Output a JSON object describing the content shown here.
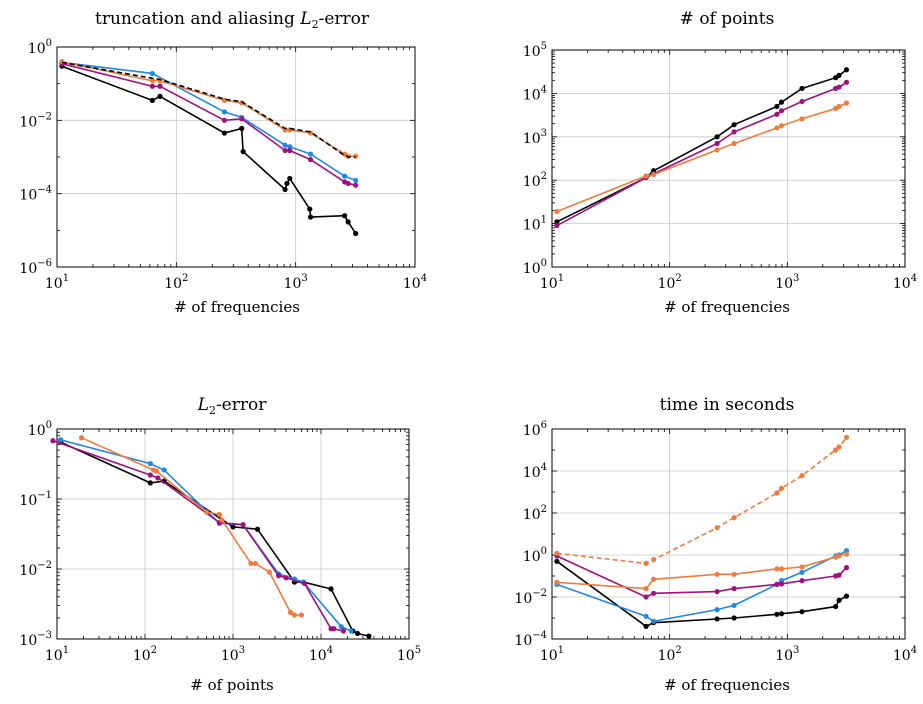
{
  "colors": {
    "black": "#000000",
    "blue": "#1e88e5",
    "purple": "#a0117f",
    "orange": "#ef7b3d"
  },
  "chart_data": [
    {
      "type": "line",
      "title": "truncation and aliasing L2-error",
      "xlabel": "# of frequencies",
      "ylabel": "",
      "xscale": "log",
      "yscale": "log",
      "xlim": [
        10,
        10000
      ],
      "ylim": [
        1e-06,
        1
      ],
      "grid": true,
      "series": [
        {
          "color": "#000000",
          "dashed": false,
          "x": [
            11,
            63,
            73,
            253,
            353,
            363,
            815,
            845,
            893,
            1313,
            1333,
            2573,
            2753,
            3183
          ],
          "y": [
            0.3,
            0.035,
            0.045,
            0.0045,
            0.006,
            0.0014,
            0.00013,
            0.00019,
            0.00026,
            3.8e-05,
            2.3e-05,
            2.5e-05,
            1.7e-05,
            8.2e-06
          ]
        },
        {
          "color": "#1e88e5",
          "dashed": false,
          "x": [
            11,
            63,
            253,
            353,
            815,
            893,
            1333,
            2573,
            3183
          ],
          "y": [
            0.38,
            0.19,
            0.017,
            0.012,
            0.0021,
            0.0019,
            0.0012,
            0.0003,
            0.00023
          ]
        },
        {
          "color": "#a0117f",
          "dashed": false,
          "x": [
            11,
            63,
            73,
            253,
            353,
            815,
            893,
            1333,
            2573,
            2753,
            3183
          ],
          "y": [
            0.35,
            0.085,
            0.085,
            0.01,
            0.011,
            0.0015,
            0.0015,
            0.00085,
            0.00021,
            0.00019,
            0.00017
          ]
        },
        {
          "color": "#ef7b3d",
          "dashed": false,
          "x": [
            11,
            63,
            73,
            253,
            353,
            815,
            893,
            1333,
            2573,
            2753,
            3183
          ],
          "y": [
            0.4,
            0.12,
            0.12,
            0.035,
            0.03,
            0.0055,
            0.0055,
            0.0045,
            0.0012,
            0.00105,
            0.00105
          ]
        },
        {
          "color": "#000000",
          "dashed": true,
          "markers": false,
          "x": [
            11,
            63,
            73,
            253,
            353,
            815,
            893,
            1333,
            2573,
            2753,
            3183
          ],
          "y": [
            0.38,
            0.14,
            0.13,
            0.038,
            0.032,
            0.006,
            0.006,
            0.0048,
            0.0011,
            0.001,
            0.001
          ]
        }
      ]
    },
    {
      "type": "line",
      "title": "# of points",
      "xlabel": "# of frequencies",
      "ylabel": "",
      "xscale": "log",
      "yscale": "log",
      "xlim": [
        10,
        10000
      ],
      "ylim": [
        1,
        100000
      ],
      "grid": true,
      "series": [
        {
          "color": "#000000",
          "dashed": false,
          "x": [
            11,
            63,
            73,
            253,
            353,
            815,
            893,
            1333,
            2573,
            2753,
            3183
          ],
          "y": [
            11,
            115,
            165,
            1000,
            1900,
            5000,
            6300,
            13000,
            23000,
            26000,
            35000
          ]
        },
        {
          "color": "#a0117f",
          "dashed": false,
          "x": [
            11,
            63,
            73,
            253,
            353,
            815,
            893,
            1333,
            2573,
            2753,
            3183
          ],
          "y": [
            9,
            115,
            140,
            700,
            1300,
            3300,
            4000,
            6500,
            13000,
            14000,
            18000
          ]
        },
        {
          "color": "#ef7b3d",
          "dashed": false,
          "x": [
            11,
            63,
            73,
            253,
            353,
            815,
            893,
            1333,
            2573,
            2753,
            3183
          ],
          "y": [
            19,
            125,
            135,
            500,
            700,
            1600,
            1800,
            2600,
            4500,
            5000,
            6000
          ]
        }
      ]
    },
    {
      "type": "line",
      "title": "L2-error",
      "xlabel": "# of points",
      "ylabel": "",
      "xscale": "log",
      "yscale": "log",
      "xlim": [
        10,
        100000
      ],
      "ylim": [
        0.001,
        1
      ],
      "grid": true,
      "series": [
        {
          "color": "#000000",
          "dashed": false,
          "x": [
            11,
            115,
            165,
            1000,
            1900,
            5000,
            6300,
            13000,
            23000,
            26000,
            35000
          ],
          "y": [
            0.65,
            0.17,
            0.18,
            0.04,
            0.037,
            0.0065,
            0.0065,
            0.0052,
            0.0013,
            0.0012,
            0.0011
          ]
        },
        {
          "color": "#1e88e5",
          "dashed": false,
          "x": [
            11,
            115,
            165,
            700,
            1300,
            3300,
            5000,
            6300,
            17000,
            22000
          ],
          "y": [
            0.7,
            0.32,
            0.26,
            0.045,
            0.043,
            0.0085,
            0.0072,
            0.0065,
            0.0015,
            0.0013
          ]
        },
        {
          "color": "#a0117f",
          "dashed": false,
          "x": [
            9,
            115,
            140,
            700,
            1300,
            3300,
            4000,
            6500,
            13000,
            14000,
            18000
          ],
          "y": [
            0.68,
            0.22,
            0.2,
            0.046,
            0.043,
            0.008,
            0.0075,
            0.0062,
            0.0014,
            0.0014,
            0.0013
          ]
        },
        {
          "color": "#ef7b3d",
          "dashed": false,
          "x": [
            19,
            125,
            135,
            500,
            700,
            750,
            1600,
            1800,
            2600,
            4500,
            5000,
            6000
          ],
          "y": [
            0.75,
            0.26,
            0.25,
            0.065,
            0.06,
            0.05,
            0.012,
            0.012,
            0.009,
            0.0024,
            0.0022,
            0.0022
          ]
        }
      ]
    },
    {
      "type": "line",
      "title": "time in seconds",
      "xlabel": "# of frequencies",
      "ylabel": "",
      "xscale": "log",
      "yscale": "log",
      "xlim": [
        10,
        10000
      ],
      "ylim": [
        0.0001,
        1000000
      ],
      "grid": true,
      "series": [
        {
          "color": "#000000",
          "dashed": false,
          "x": [
            11,
            63,
            73,
            253,
            353,
            815,
            893,
            1333,
            2573,
            2753,
            3183
          ],
          "y": [
            0.5,
            0.0004,
            0.0006,
            0.0009,
            0.001,
            0.0015,
            0.0016,
            0.002,
            0.0035,
            0.007,
            0.011
          ]
        },
        {
          "color": "#1e88e5",
          "dashed": false,
          "x": [
            11,
            63,
            73,
            253,
            353,
            815,
            893,
            1333,
            2573,
            2753,
            3183
          ],
          "y": [
            0.04,
            0.0012,
            0.0007,
            0.0025,
            0.004,
            0.04,
            0.06,
            0.15,
            0.9,
            1.0,
            1.6
          ]
        },
        {
          "color": "#a0117f",
          "dashed": false,
          "x": [
            11,
            63,
            73,
            253,
            353,
            815,
            893,
            1333,
            2573,
            2753,
            3183
          ],
          "y": [
            0.9,
            0.01,
            0.015,
            0.018,
            0.025,
            0.04,
            0.042,
            0.06,
            0.1,
            0.11,
            0.25
          ]
        },
        {
          "color": "#ef7b3d",
          "dashed": false,
          "x": [
            11,
            63,
            73,
            253,
            353,
            815,
            893,
            1333,
            2573,
            2753,
            3183
          ],
          "y": [
            0.05,
            0.025,
            0.07,
            0.12,
            0.12,
            0.22,
            0.22,
            0.27,
            0.8,
            0.9,
            1.1
          ]
        },
        {
          "color": "#ef7b3d",
          "dashed": true,
          "x": [
            11,
            63,
            73,
            253,
            353,
            815,
            893,
            1333,
            2573,
            2753,
            3183
          ],
          "y": [
            1.2,
            0.4,
            0.6,
            20,
            60,
            900,
            1500,
            6000,
            100000,
            140000,
            400000
          ]
        }
      ]
    }
  ]
}
